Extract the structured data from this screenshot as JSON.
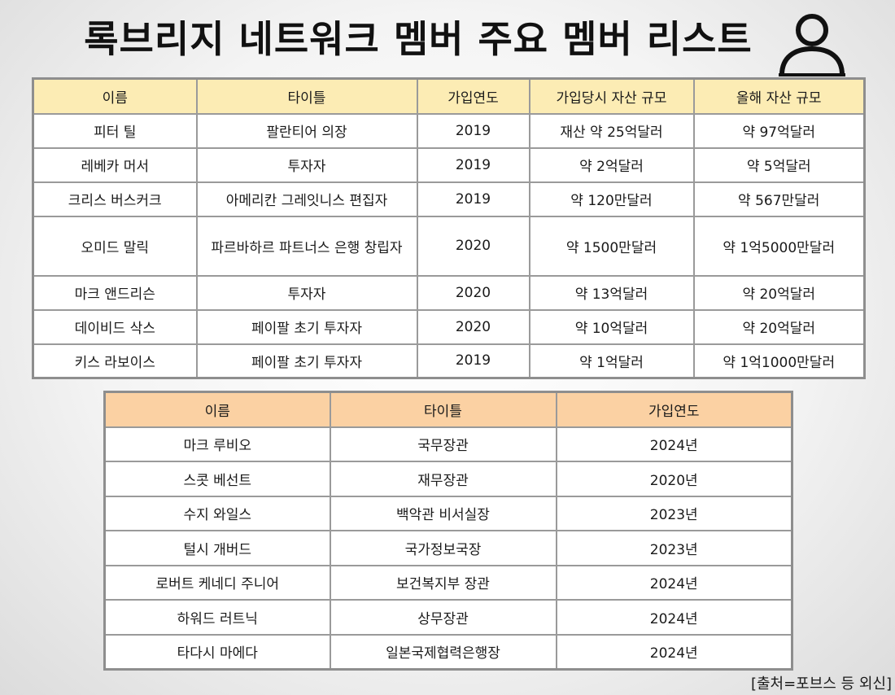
{
  "title": "록브리지 네트워크 멤버 주요 멤버 리스트",
  "icon": "person-icon",
  "table1": {
    "header_color": "#fcecb4",
    "headers": [
      "이름",
      "타이틀",
      "가입연도",
      "가입당시 자산 규모",
      "올해 자산 규모"
    ],
    "rows": [
      [
        "피터 틸",
        "팔란티어 의장",
        "2019",
        "재산 약 25억달러",
        "약 97억달러"
      ],
      [
        "레베카 머서",
        "투자자",
        "2019",
        "약 2억달러",
        "약 5억달러"
      ],
      [
        "크리스 버스커크",
        "아메리칸 그레잇니스 편집자",
        "2019",
        "약 120만달러",
        "약 567만달러"
      ],
      [
        "오미드 말릭",
        "파르바하르 파트너스 은행 창립자",
        "2020",
        "약 1500만달러",
        "약 1억5000만달러"
      ],
      [
        "마크 앤드리슨",
        "투자자",
        "2020",
        "약 13억달러",
        "약 20억달러"
      ],
      [
        "데이비드 삭스",
        "페이팔 초기 투자자",
        "2020",
        "약 10억달러",
        "약 20억달러"
      ],
      [
        "키스 라보이스",
        "페이팔 초기 투자자",
        "2019",
        "약 1억달러",
        "약 1억1000만달러"
      ]
    ]
  },
  "table2": {
    "header_color": "#fbd1a3",
    "headers": [
      "이름",
      "타이틀",
      "가입연도"
    ],
    "rows": [
      [
        "마크 루비오",
        "국무장관",
        "2024년"
      ],
      [
        "스콧 베선트",
        "재무장관",
        "2020년"
      ],
      [
        "수지 와일스",
        "백악관 비서실장",
        "2023년"
      ],
      [
        "털시 개버드",
        "국가정보국장",
        "2023년"
      ],
      [
        "로버트 케네디 주니어",
        "보건복지부 장관",
        "2024년"
      ],
      [
        "하워드 러트닉",
        "상무장관",
        "2024년"
      ],
      [
        "타다시 마에다",
        "일본국제협력은행장",
        "2024년"
      ]
    ]
  },
  "source": "[출처=포브스 등 외신]"
}
